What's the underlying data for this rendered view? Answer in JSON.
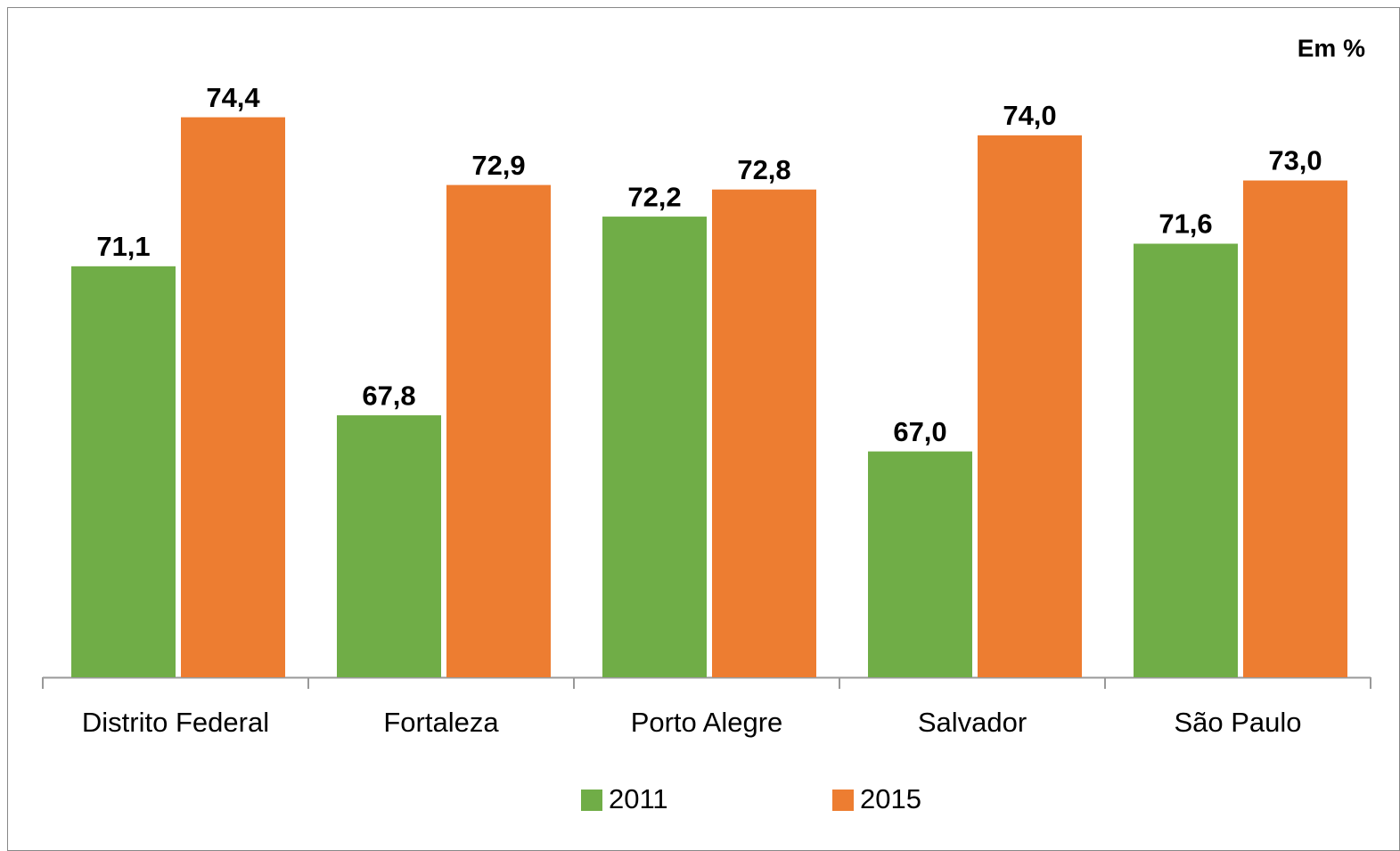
{
  "chart_data": {
    "type": "bar",
    "annotation": "Em %",
    "categories": [
      "Distrito Federal",
      "Fortaleza",
      "Porto Alegre",
      "Salvador",
      "São Paulo"
    ],
    "series": [
      {
        "name": "2011",
        "color": "#70ad47",
        "values": [
          71.1,
          67.8,
          72.2,
          67.0,
          71.6
        ],
        "value_labels": [
          "71,1",
          "67,8",
          "72,2",
          "67,0",
          "71,6"
        ]
      },
      {
        "name": "2015",
        "color": "#ed7d31",
        "values": [
          74.4,
          72.9,
          72.8,
          74.0,
          73.0
        ],
        "value_labels": [
          "74,4",
          "72,9",
          "72,8",
          "74,0",
          "73,0"
        ]
      }
    ],
    "ylim": [
      62,
      76
    ],
    "legend": "bottom"
  }
}
